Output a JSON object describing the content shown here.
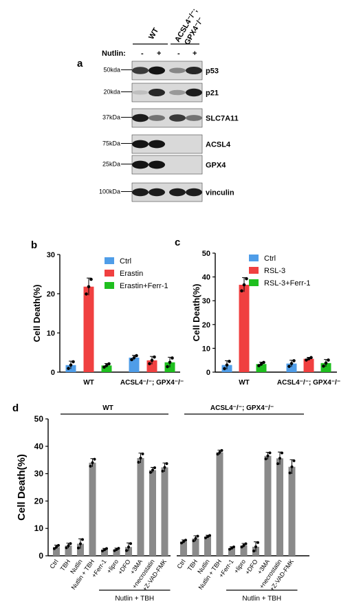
{
  "panel_a": {
    "label": "a",
    "groups": [
      "WT",
      "ACSL4⁻/⁻;",
      "GPX4⁻/⁻"
    ],
    "nutlin_label": "Nutlin:",
    "nutlin_signs": [
      "-",
      "+",
      "-",
      "+"
    ],
    "blots": [
      {
        "name": "p53",
        "marker": "50kda",
        "bands": [
          0.75,
          0.95,
          0.35,
          0.85
        ]
      },
      {
        "name": "p21",
        "marker": "20kda",
        "bands": [
          0.05,
          0.85,
          0.25,
          0.9
        ]
      },
      {
        "name": "SLC7A11",
        "marker": "37kDa",
        "bands": [
          0.9,
          0.45,
          0.75,
          0.45
        ]
      },
      {
        "name": "ACSL4",
        "marker": "75kDa",
        "bands": [
          0.95,
          0.95,
          0.0,
          0.0
        ]
      },
      {
        "name": "GPX4",
        "marker": "25kDa",
        "bands": [
          0.95,
          0.95,
          0.0,
          0.0
        ]
      },
      {
        "name": "vinculin",
        "marker": "100kDa",
        "bands": [
          0.9,
          0.9,
          0.9,
          0.9
        ]
      }
    ]
  },
  "chart_data": [
    {
      "panel": "b",
      "type": "bar",
      "ylabel": "Cell Death(%)",
      "ylim": [
        0,
        30
      ],
      "yticks": [
        0,
        10,
        20,
        30
      ],
      "categories": [
        "WT",
        "ACSL4⁻/⁻; GPX4⁻/⁻"
      ],
      "series": [
        {
          "name": "Ctrl",
          "color": "#4f9de8",
          "values": [
            1.8,
            3.7
          ],
          "errors": [
            1.0,
            0.6
          ]
        },
        {
          "name": "Erastin",
          "color": "#f04040",
          "values": [
            21.8,
            3.0
          ],
          "errors": [
            2.2,
            1.0
          ]
        },
        {
          "name": "Erastin+Ferr-1",
          "color": "#1fbf1f",
          "values": [
            1.7,
            2.5
          ],
          "errors": [
            0.5,
            1.3
          ]
        }
      ],
      "legend_position": "top-right"
    },
    {
      "panel": "c",
      "type": "bar",
      "ylabel": "Cell Death(%)",
      "ylim": [
        0,
        50
      ],
      "yticks": [
        0,
        10,
        20,
        30,
        40,
        50
      ],
      "categories": [
        "WT",
        "ACSL4⁻/⁻; GPX4⁻/⁻"
      ],
      "series": [
        {
          "name": "Ctrl",
          "color": "#4f9de8",
          "values": [
            3.0,
            3.6
          ],
          "errors": [
            1.8,
            1.4
          ]
        },
        {
          "name": "RSL-3",
          "color": "#f04040",
          "values": [
            36.7,
            5.6
          ],
          "errors": [
            3.0,
            0.6
          ]
        },
        {
          "name": "RSL-3+Ferr-1",
          "color": "#1fbf1f",
          "values": [
            3.4,
            3.8
          ],
          "errors": [
            0.8,
            1.5
          ]
        }
      ],
      "legend_position": "top-right"
    },
    {
      "panel": "d",
      "type": "bar",
      "ylabel": "Cell Death(%)",
      "ylim": [
        0,
        50
      ],
      "yticks": [
        0,
        10,
        20,
        30,
        40,
        50
      ],
      "color": "#8a8a8a",
      "groups": [
        "WT",
        "ACSL4⁻/⁻; GPX4⁻/⁻"
      ],
      "bracket_label": "Nutlin + TBH",
      "categories": [
        "Ctrl",
        "TBH",
        "Nutlin",
        "Nutlin + TBH",
        "+Ferr-1",
        "+lipro",
        "+DFO",
        "+3MA",
        "+necrostatin",
        "+Z-VAD-FMK"
      ],
      "series": [
        {
          "name": "WT",
          "values": [
            3.2,
            3.7,
            4.4,
            34.0,
            2.2,
            2.3,
            3.2,
            35.7,
            31.3,
            32.3
          ],
          "errors": [
            0.7,
            0.9,
            1.8,
            1.5,
            0.5,
            0.5,
            1.5,
            1.8,
            1.0,
            1.6
          ]
        },
        {
          "name": "ACSL4⁻/⁻; GPX4⁻/⁻",
          "values": [
            5.2,
            6.3,
            7.0,
            37.8,
            2.8,
            3.8,
            3.3,
            36.5,
            35.6,
            32.5
          ],
          "errors": [
            0.6,
            1.0,
            0.5,
            0.8,
            0.5,
            0.7,
            1.8,
            1.3,
            2.3,
            2.6
          ]
        }
      ]
    }
  ]
}
